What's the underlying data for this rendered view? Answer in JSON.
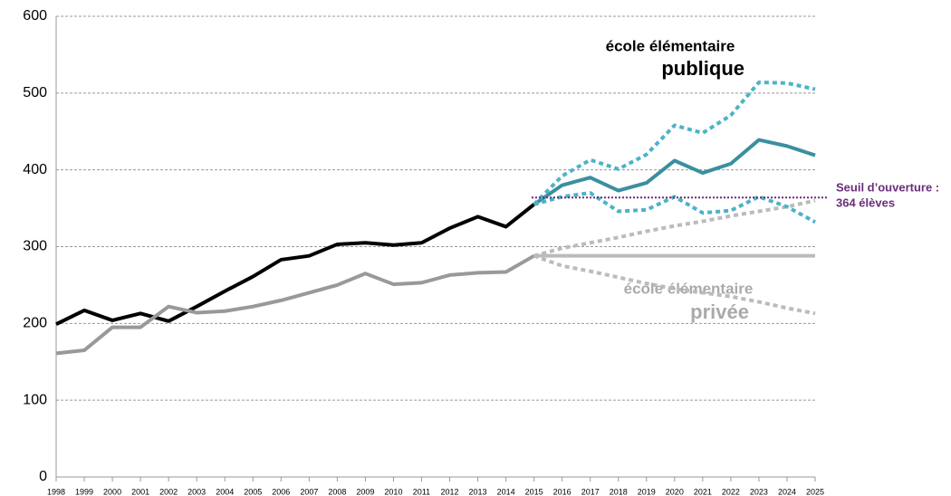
{
  "chart_data": {
    "type": "line",
    "x": [
      1998,
      1999,
      2000,
      2001,
      2002,
      2003,
      2004,
      2005,
      2006,
      2007,
      2008,
      2009,
      2010,
      2011,
      2012,
      2013,
      2014,
      2015,
      2016,
      2017,
      2018,
      2019,
      2020,
      2021,
      2022,
      2023,
      2024,
      2025
    ],
    "xlim": [
      1998,
      2025
    ],
    "ylim": [
      0,
      600
    ],
    "yticks": [
      0,
      100,
      200,
      300,
      400,
      500,
      600
    ],
    "grid": true,
    "series": [
      {
        "color": "#000000",
        "style": "solid",
        "values": [
          199,
          217,
          204,
          213,
          203,
          222,
          242,
          261,
          283,
          288,
          303,
          305,
          302,
          305,
          324,
          339,
          326,
          355,
          null,
          null,
          null,
          null,
          null,
          null,
          null,
          null,
          null,
          null
        ]
      },
      {
        "color": "#999999",
        "style": "solid",
        "values": [
          161,
          165,
          195,
          195,
          222,
          214,
          216,
          222,
          230,
          240,
          250,
          265,
          251,
          253,
          263,
          266,
          267,
          288,
          null,
          null,
          null,
          null,
          null,
          null,
          null,
          null,
          null,
          null
        ]
      },
      {
        "color": "#bbbbbb",
        "style": "solid",
        "values": [
          null,
          null,
          null,
          null,
          null,
          null,
          null,
          null,
          null,
          null,
          null,
          null,
          null,
          null,
          null,
          null,
          null,
          288,
          288,
          288,
          288,
          288,
          288,
          288,
          288,
          288,
          288,
          288
        ]
      },
      {
        "color": "#bbbbbb",
        "style": "dotted",
        "values": [
          null,
          null,
          null,
          null,
          null,
          null,
          null,
          null,
          null,
          null,
          null,
          null,
          null,
          null,
          null,
          null,
          null,
          288,
          298,
          305,
          312,
          320,
          327,
          333,
          340,
          346,
          352,
          360
        ]
      },
      {
        "color": "#bbbbbb",
        "style": "dotted",
        "values": [
          null,
          null,
          null,
          null,
          null,
          null,
          null,
          null,
          null,
          null,
          null,
          null,
          null,
          null,
          null,
          null,
          null,
          288,
          275,
          268,
          260,
          252,
          245,
          240,
          235,
          228,
          220,
          213
        ]
      },
      {
        "color": "#3a8fa0",
        "style": "solid",
        "values": [
          null,
          null,
          null,
          null,
          null,
          null,
          null,
          null,
          null,
          null,
          null,
          null,
          null,
          null,
          null,
          null,
          null,
          355,
          380,
          390,
          373,
          383,
          412,
          396,
          408,
          439,
          431,
          419
        ]
      },
      {
        "color": "#4cb3c8",
        "style": "dotted",
        "values": [
          null,
          null,
          null,
          null,
          null,
          null,
          null,
          null,
          null,
          null,
          null,
          null,
          null,
          null,
          null,
          null,
          null,
          355,
          392,
          413,
          401,
          420,
          458,
          448,
          471,
          514,
          513,
          505
        ]
      },
      {
        "color": "#4cb3c8",
        "style": "dotted",
        "values": [
          null,
          null,
          null,
          null,
          null,
          null,
          null,
          null,
          null,
          null,
          null,
          null,
          null,
          null,
          null,
          null,
          null,
          355,
          365,
          370,
          346,
          348,
          365,
          344,
          347,
          365,
          352,
          332
        ]
      }
    ],
    "threshold": {
      "value": 364,
      "color": "#6b2d7b",
      "label": [
        "Seuil d’ouverture :",
        "364 élèves"
      ]
    },
    "annotations": {
      "public": [
        "école élémentaire",
        "publique"
      ],
      "private": [
        "école élémentaire",
        "privée"
      ]
    }
  }
}
